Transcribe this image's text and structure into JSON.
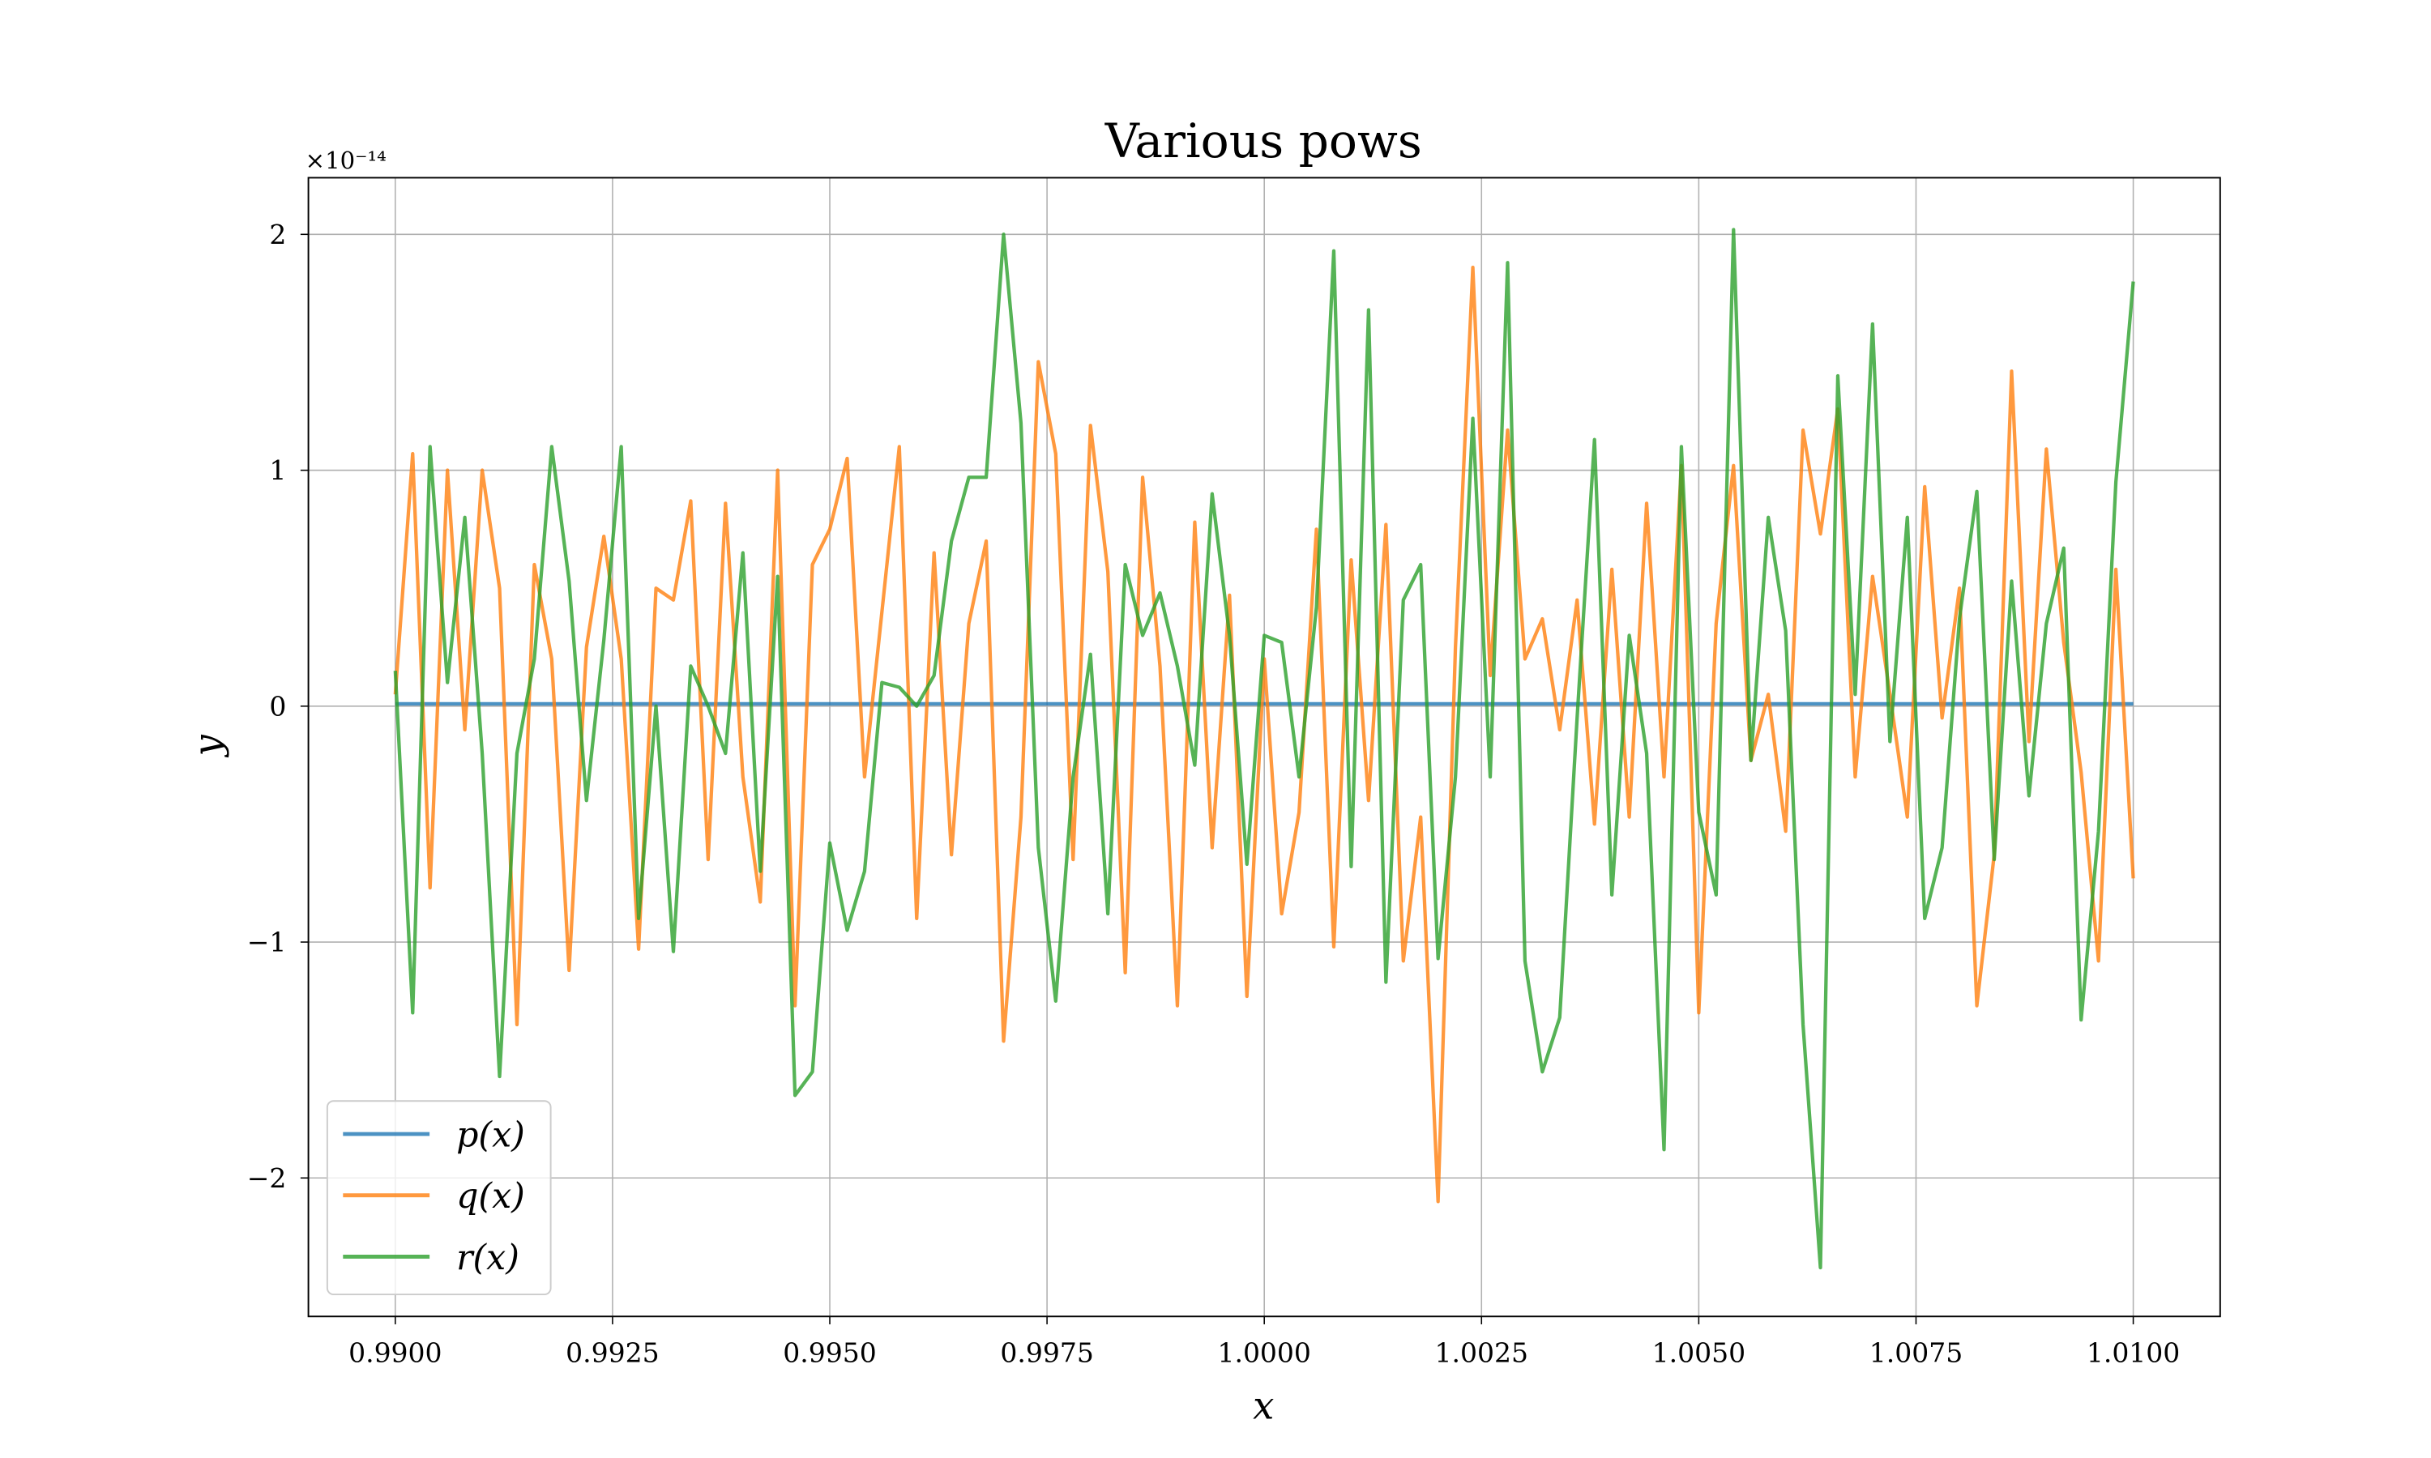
{
  "chart_data": {
    "type": "line",
    "title": "Various pows",
    "xlabel": "x",
    "ylabel": "y",
    "y_offset_text": "×10⁻¹⁴",
    "x": [
      0.99,
      0.9902,
      0.9904,
      0.9906,
      0.9908,
      0.991,
      0.9912,
      0.9914,
      0.9916,
      0.9918,
      0.992,
      0.9922,
      0.9924,
      0.9926,
      0.9928,
      0.993,
      0.9932,
      0.9934,
      0.9936,
      0.9938,
      0.994,
      0.9942,
      0.9944,
      0.9946,
      0.9948,
      0.995,
      0.9952,
      0.9954,
      0.9956,
      0.9958,
      0.996,
      0.9962,
      0.9964,
      0.9966,
      0.9968,
      0.997,
      0.9972,
      0.9974,
      0.9976,
      0.9978,
      0.998,
      0.9982,
      0.9984,
      0.9986,
      0.9988,
      0.999,
      0.9992,
      0.9994,
      0.9996,
      0.9998,
      1.0,
      1.0002,
      1.0004,
      1.0006,
      1.0008,
      1.001,
      1.0012,
      1.0014,
      1.0016,
      1.0018,
      1.002,
      1.0022,
      1.0024,
      1.0026,
      1.0028,
      1.003,
      1.0032,
      1.0034,
      1.0036,
      1.0038,
      1.004,
      1.0042,
      1.0044,
      1.0046,
      1.0048,
      1.005,
      1.0052,
      1.0054,
      1.0056,
      1.0058,
      1.006,
      1.0062,
      1.0064,
      1.0066,
      1.0068,
      1.007,
      1.0072,
      1.0074,
      1.0076,
      1.0078,
      1.008,
      1.0082,
      1.0084,
      1.0086,
      1.0088,
      1.009,
      1.0092,
      1.0094,
      1.0096,
      1.0098,
      1.01
    ],
    "series": [
      {
        "name": "p(x)",
        "color": "#1f77b4",
        "values": [
          0.01,
          0.01,
          0.01,
          0.01,
          0.01,
          0.01,
          0.01,
          0.01,
          0.01,
          0.01,
          0.01,
          0.01,
          0.01,
          0.01,
          0.01,
          0.01,
          0.01,
          0.01,
          0.01,
          0.01,
          0.01,
          0.01,
          0.01,
          0.01,
          0.01,
          0.01,
          0.01,
          0.01,
          0.01,
          0.01,
          0.01,
          0.01,
          0.01,
          0.01,
          0.01,
          0.01,
          0.01,
          0.01,
          0.01,
          0.01,
          0.01,
          0.01,
          0.01,
          0.01,
          0.01,
          0.01,
          0.01,
          0.01,
          0.01,
          0.01,
          0.01,
          0.01,
          0.01,
          0.01,
          0.01,
          0.01,
          0.01,
          0.01,
          0.01,
          0.01,
          0.01,
          0.01,
          0.01,
          0.01,
          0.01,
          0.01,
          0.01,
          0.01,
          0.01,
          0.01,
          0.01,
          0.01,
          0.01,
          0.01,
          0.01,
          0.01,
          0.01,
          0.01,
          0.01,
          0.01,
          0.01,
          0.01,
          0.01,
          0.01,
          0.01,
          0.01,
          0.01,
          0.01,
          0.01,
          0.01,
          0.01,
          0.01,
          0.01,
          0.01,
          0.01,
          0.01,
          0.01,
          0.01,
          0.01,
          0.01,
          0.01
        ]
      },
      {
        "name": "q(x)",
        "color": "#ff7f0e",
        "values": [
          0.05,
          1.07,
          -0.77,
          1.0,
          -0.1,
          1.0,
          0.5,
          -1.35,
          0.6,
          0.2,
          -1.12,
          0.25,
          0.72,
          0.2,
          -1.03,
          0.5,
          0.45,
          0.87,
          -0.65,
          0.86,
          -0.3,
          -0.83,
          1.0,
          -1.27,
          0.6,
          0.75,
          1.05,
          -0.3,
          0.4,
          1.1,
          -0.9,
          0.65,
          -0.63,
          0.35,
          0.7,
          -1.42,
          -0.47,
          1.46,
          1.07,
          -0.65,
          1.19,
          0.57,
          -1.13,
          0.97,
          0.17,
          -1.27,
          0.78,
          -0.6,
          0.47,
          -1.23,
          0.2,
          -0.88,
          -0.45,
          0.75,
          -1.02,
          0.62,
          -0.4,
          0.77,
          -1.08,
          -0.47,
          -2.1,
          0.25,
          1.86,
          0.13,
          1.17,
          0.2,
          0.37,
          -0.1,
          0.45,
          -0.5,
          0.58,
          -0.47,
          0.86,
          -0.3,
          1.02,
          -1.3,
          0.35,
          1.02,
          -0.23,
          0.05,
          -0.53,
          1.17,
          0.73,
          1.26,
          -0.3,
          0.55,
          0.05,
          -0.47,
          0.93,
          -0.05,
          0.5,
          -1.27,
          -0.63,
          1.42,
          -0.15,
          1.09,
          0.27,
          -0.28,
          -1.08,
          0.58,
          -0.73
        ]
      },
      {
        "name": "r(x)",
        "color": "#2ca02c",
        "values": [
          0.15,
          -1.3,
          1.1,
          0.1,
          0.8,
          -0.2,
          -1.57,
          -0.2,
          0.2,
          1.1,
          0.53,
          -0.4,
          0.28,
          1.1,
          -0.9,
          0,
          -1.04,
          0.17,
          0,
          -0.2,
          0.65,
          -0.7,
          0.55,
          -1.65,
          -1.55,
          -0.58,
          -0.95,
          -0.7,
          0.1,
          0.08,
          0,
          0.13,
          0.7,
          0.97,
          0.97,
          2.0,
          1.2,
          -0.6,
          -1.25,
          -0.3,
          0.22,
          -0.88,
          0.6,
          0.3,
          0.48,
          0.17,
          -0.25,
          0.9,
          0.3,
          -0.67,
          0.3,
          0.27,
          -0.3,
          0.42,
          1.93,
          -0.68,
          1.68,
          -1.17,
          0.45,
          0.6,
          -1.07,
          -0.3,
          1.22,
          -0.3,
          1.88,
          -1.08,
          -1.55,
          -1.32,
          -0.05,
          1.13,
          -0.8,
          0.3,
          -0.2,
          -1.88,
          1.1,
          -0.45,
          -0.8,
          2.02,
          -0.23,
          0.8,
          0.32,
          -1.35,
          -2.38,
          1.4,
          0.05,
          1.62,
          -0.15,
          0.8,
          -0.9,
          -0.6,
          0.37,
          0.91,
          -0.65,
          0.53,
          -0.38,
          0.35,
          0.67,
          -1.33,
          -0.53,
          0.95,
          1.8
        ]
      }
    ],
    "xlim": [
      0.989,
      1.011
    ],
    "ylim": [
      -2.587,
      2.24
    ],
    "xticks": [
      {
        "value": 0.99,
        "label": "0.9900"
      },
      {
        "value": 0.9925,
        "label": "0.9925"
      },
      {
        "value": 0.995,
        "label": "0.9950"
      },
      {
        "value": 0.9975,
        "label": "0.9975"
      },
      {
        "value": 1.0,
        "label": "1.0000"
      },
      {
        "value": 1.0025,
        "label": "1.0025"
      },
      {
        "value": 1.005,
        "label": "1.0050"
      },
      {
        "value": 1.0075,
        "label": "1.0075"
      },
      {
        "value": 1.01,
        "label": "1.0100"
      }
    ],
    "yticks": [
      {
        "value": -2,
        "label": "−2"
      },
      {
        "value": -1,
        "label": "−1"
      },
      0,
      1,
      2
    ],
    "grid": true,
    "legend": "lower left"
  }
}
